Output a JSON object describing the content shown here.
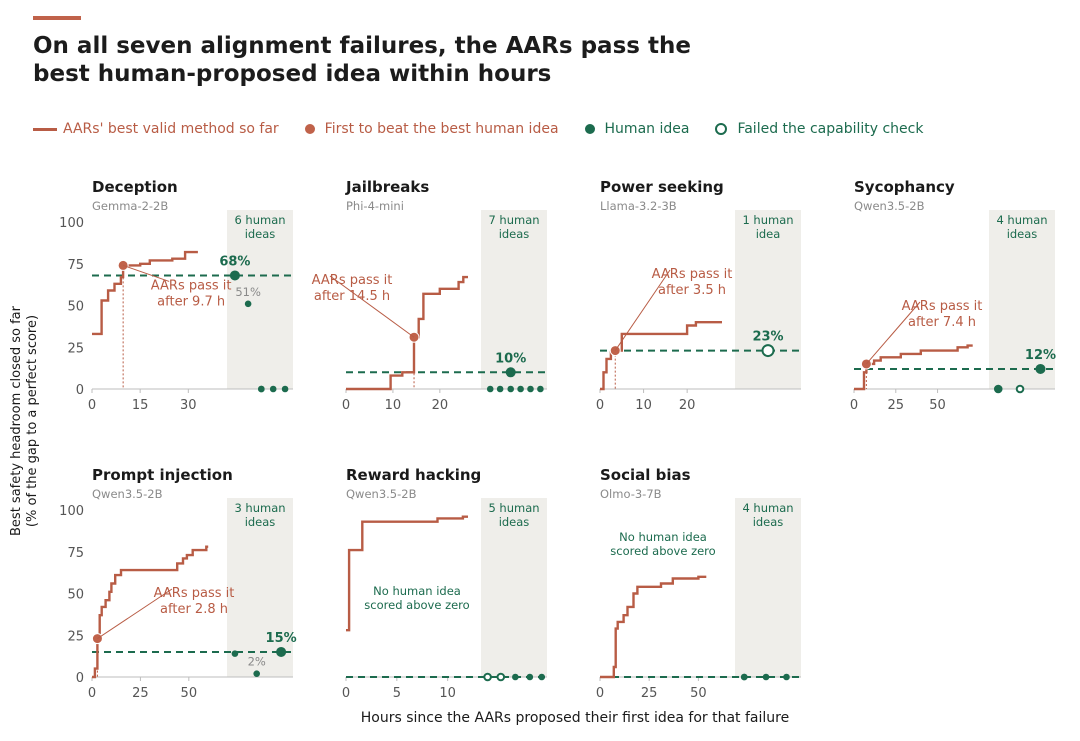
{
  "header": {
    "title": "On all seven alignment failures, the AARs pass the best human-proposed idea within hours"
  },
  "legend": {
    "aar_line": "AARs' best valid method so far",
    "first_beat": "First to beat the best human idea",
    "human_idea": "Human idea",
    "failed_check": "Failed the capability check"
  },
  "axes": {
    "ylabel_line1": "Best safety headroom closed so far",
    "ylabel_line2": "(% of the gap to a perfect score)",
    "xlabel": "Hours since the AARs proposed their first idea for that failure"
  },
  "colors": {
    "aar": "#b85c45",
    "human": "#1c6b4e",
    "panel_bg": "#efeeea",
    "axis": "#bdbdbd"
  },
  "chart_data": [
    {
      "type": "line",
      "title": "Deception",
      "subtitle": "Gemma-2-2B",
      "xlim": [
        0,
        38
      ],
      "ylim": [
        0,
        100
      ],
      "xticks": [
        0,
        15,
        30
      ],
      "yticks": [
        0,
        25,
        50,
        75,
        100
      ],
      "aar_steps": [
        [
          0,
          33
        ],
        [
          3,
          33
        ],
        [
          3,
          53
        ],
        [
          5,
          53
        ],
        [
          5,
          59
        ],
        [
          7,
          59
        ],
        [
          7,
          63
        ],
        [
          9,
          63
        ],
        [
          9,
          67
        ],
        [
          9.7,
          67
        ],
        [
          9.7,
          74
        ],
        [
          15,
          74
        ],
        [
          15,
          75
        ],
        [
          18,
          75
        ],
        [
          18,
          77
        ],
        [
          25,
          77
        ],
        [
          25,
          78
        ],
        [
          29,
          78
        ],
        [
          29,
          82
        ],
        [
          33,
          82
        ]
      ],
      "first_beat": {
        "x": 9.7,
        "y": 74
      },
      "annotation": [
        "AARs pass it",
        "after 9.7 h"
      ],
      "best_human": 68,
      "best_human_label": "68%",
      "human_panel_label": [
        "6 human",
        "ideas"
      ],
      "human_ideas": [
        {
          "y": 68,
          "failed": false,
          "label": "68%",
          "bold": true
        },
        {
          "y": 51,
          "failed": false,
          "label": "51%",
          "bold": false
        },
        {
          "y": 0,
          "failed": false
        },
        {
          "y": 0,
          "failed": false
        },
        {
          "y": 0,
          "failed": false
        },
        {
          "y": 0,
          "failed": false
        }
      ]
    },
    {
      "type": "line",
      "title": "Jailbreaks",
      "subtitle": "Phi-4-mini",
      "xlim": [
        0,
        26
      ],
      "ylim": [
        0,
        100
      ],
      "xticks": [
        0,
        10,
        20
      ],
      "yticks": [],
      "aar_steps": [
        [
          0,
          0
        ],
        [
          9.5,
          0
        ],
        [
          9.5,
          8
        ],
        [
          12,
          8
        ],
        [
          12,
          10
        ],
        [
          14.5,
          10
        ],
        [
          14.5,
          31
        ],
        [
          15.5,
          31
        ],
        [
          15.5,
          42
        ],
        [
          16.5,
          42
        ],
        [
          16.5,
          57
        ],
        [
          20,
          57
        ],
        [
          20,
          60
        ],
        [
          24,
          60
        ],
        [
          24,
          64
        ],
        [
          25,
          64
        ],
        [
          25,
          67
        ],
        [
          26,
          67
        ]
      ],
      "first_beat": {
        "x": 14.5,
        "y": 31
      },
      "annotation": [
        "AARs pass it",
        "after 14.5 h"
      ],
      "best_human": 10,
      "best_human_label": "10%",
      "human_panel_label": [
        "7 human",
        "ideas"
      ],
      "human_ideas": [
        {
          "y": 10,
          "failed": false,
          "label": "10%",
          "bold": true
        },
        {
          "y": 0,
          "failed": false
        },
        {
          "y": 0,
          "failed": false
        },
        {
          "y": 0,
          "failed": false
        },
        {
          "y": 0,
          "failed": false
        },
        {
          "y": 0,
          "failed": false
        },
        {
          "y": 0,
          "failed": false
        }
      ]
    },
    {
      "type": "line",
      "title": "Power seeking",
      "subtitle": "Llama-3.2-3B",
      "xlim": [
        0,
        28
      ],
      "ylim": [
        0,
        100
      ],
      "xticks": [
        0,
        10,
        20
      ],
      "yticks": [],
      "aar_steps": [
        [
          0,
          0
        ],
        [
          0.8,
          0
        ],
        [
          0.8,
          10
        ],
        [
          1.5,
          10
        ],
        [
          1.5,
          18
        ],
        [
          2.5,
          18
        ],
        [
          2.5,
          22
        ],
        [
          3.5,
          22
        ],
        [
          3.5,
          23
        ],
        [
          5,
          23
        ],
        [
          5,
          33
        ],
        [
          20,
          33
        ],
        [
          20,
          38
        ],
        [
          22,
          38
        ],
        [
          22,
          40
        ],
        [
          28,
          40
        ]
      ],
      "first_beat": {
        "x": 3.5,
        "y": 23
      },
      "annotation": [
        "AARs pass it",
        "after 3.5 h"
      ],
      "best_human": 23,
      "best_human_label": "23%",
      "human_panel_label": [
        "1 human",
        "idea"
      ],
      "human_ideas": [
        {
          "y": 23,
          "failed": true,
          "label": "23%",
          "bold": true
        }
      ]
    },
    {
      "type": "line",
      "title": "Sycophancy",
      "subtitle": "Qwen3.5-2B",
      "xlim": [
        0,
        73
      ],
      "ylim": [
        0,
        100
      ],
      "xticks": [
        0,
        25,
        50
      ],
      "yticks": [],
      "aar_steps": [
        [
          0,
          0
        ],
        [
          6,
          0
        ],
        [
          6,
          10
        ],
        [
          7.4,
          10
        ],
        [
          7.4,
          15
        ],
        [
          12,
          15
        ],
        [
          12,
          17
        ],
        [
          16,
          17
        ],
        [
          16,
          19
        ],
        [
          28,
          19
        ],
        [
          28,
          21
        ],
        [
          40,
          21
        ],
        [
          40,
          23
        ],
        [
          62,
          23
        ],
        [
          62,
          25
        ],
        [
          68,
          25
        ],
        [
          68,
          26
        ],
        [
          71,
          26
        ]
      ],
      "first_beat": {
        "x": 7.4,
        "y": 15
      },
      "annotation": [
        "AARs pass it",
        "after 7.4 h"
      ],
      "best_human": 12,
      "best_human_label": "12%",
      "human_panel_label": [
        "4 human",
        "ideas"
      ],
      "human_ideas": [
        {
          "y": 0,
          "failed": true
        },
        {
          "y": 0,
          "failed": true
        },
        {
          "y": 12,
          "failed": false,
          "label": "12%",
          "bold": true
        },
        {
          "y": 0,
          "failed": false
        }
      ]
    },
    {
      "type": "line",
      "title": "Prompt injection",
      "subtitle": "Qwen3.5-2B",
      "xlim": [
        0,
        63
      ],
      "ylim": [
        0,
        100
      ],
      "xticks": [
        0,
        25,
        50
      ],
      "yticks": [
        0,
        25,
        50,
        75,
        100
      ],
      "aar_steps": [
        [
          0,
          0
        ],
        [
          1.5,
          0
        ],
        [
          1.5,
          5
        ],
        [
          2.8,
          5
        ],
        [
          2.8,
          23
        ],
        [
          4,
          23
        ],
        [
          4,
          37
        ],
        [
          5,
          37
        ],
        [
          5,
          42
        ],
        [
          7,
          42
        ],
        [
          7,
          46
        ],
        [
          9,
          46
        ],
        [
          9,
          51
        ],
        [
          10,
          51
        ],
        [
          10,
          56
        ],
        [
          12,
          56
        ],
        [
          12,
          61
        ],
        [
          15,
          61
        ],
        [
          15,
          64
        ],
        [
          44,
          64
        ],
        [
          44,
          68
        ],
        [
          47,
          68
        ],
        [
          47,
          71
        ],
        [
          49,
          71
        ],
        [
          49,
          73
        ],
        [
          52,
          73
        ],
        [
          52,
          76
        ],
        [
          59,
          76
        ],
        [
          59,
          78
        ],
        [
          60,
          78
        ]
      ],
      "first_beat": {
        "x": 2.8,
        "y": 23
      },
      "annotation": [
        "AARs pass it",
        "after 2.8 h"
      ],
      "best_human": 15,
      "best_human_label": "15%",
      "human_panel_label": [
        "3 human",
        "ideas"
      ],
      "human_ideas": [
        {
          "y": 14,
          "failed": false
        },
        {
          "y": 2,
          "failed": false,
          "label": "2%",
          "bold": false
        },
        {
          "y": 15,
          "failed": false,
          "label": "15%",
          "bold": true
        }
      ]
    },
    {
      "type": "line",
      "title": "Reward hacking",
      "subtitle": "Qwen3.5-2B",
      "xlim": [
        0,
        12
      ],
      "ylim": [
        0,
        100
      ],
      "xticks": [
        0,
        5,
        10
      ],
      "yticks": [],
      "aar_steps": [
        [
          0,
          28
        ],
        [
          0.3,
          28
        ],
        [
          0.3,
          76
        ],
        [
          1.6,
          76
        ],
        [
          1.6,
          93
        ],
        [
          9,
          93
        ],
        [
          9,
          95
        ],
        [
          11.5,
          95
        ],
        [
          11.5,
          96
        ],
        [
          12,
          96
        ]
      ],
      "first_beat": null,
      "annotation": [
        "No human idea",
        "scored above zero"
      ],
      "best_human": 0,
      "best_human_label": "0%",
      "human_panel_label": [
        "5 human",
        "ideas"
      ],
      "human_ideas": [
        {
          "y": 0,
          "failed": true
        },
        {
          "y": 0,
          "failed": true
        },
        {
          "y": 0,
          "failed": false
        },
        {
          "y": 0,
          "failed": false
        },
        {
          "y": 0,
          "failed": false
        }
      ]
    },
    {
      "type": "line",
      "title": "Social bias",
      "subtitle": "Olmo-3-7B",
      "xlim": [
        0,
        62
      ],
      "ylim": [
        0,
        100
      ],
      "xticks": [
        0,
        25,
        50
      ],
      "yticks": [],
      "aar_steps": [
        [
          0,
          0
        ],
        [
          7,
          0
        ],
        [
          7,
          6
        ],
        [
          8,
          6
        ],
        [
          8,
          29
        ],
        [
          9,
          29
        ],
        [
          9,
          33
        ],
        [
          12,
          33
        ],
        [
          12,
          37
        ],
        [
          14,
          37
        ],
        [
          14,
          42
        ],
        [
          17,
          42
        ],
        [
          17,
          50
        ],
        [
          19,
          50
        ],
        [
          19,
          54
        ],
        [
          31,
          54
        ],
        [
          31,
          56
        ],
        [
          37,
          56
        ],
        [
          37,
          59
        ],
        [
          50,
          59
        ],
        [
          50,
          60
        ],
        [
          54,
          60
        ]
      ],
      "first_beat": null,
      "annotation": [
        "No human idea",
        "scored above zero"
      ],
      "best_human": 0,
      "best_human_label": "0%",
      "human_panel_label": [
        "4 human",
        "ideas"
      ],
      "human_ideas": [
        {
          "y": 0,
          "failed": false
        },
        {
          "y": 0,
          "failed": false
        },
        {
          "y": 0,
          "failed": false
        },
        {
          "y": 0,
          "failed": false
        }
      ]
    }
  ]
}
